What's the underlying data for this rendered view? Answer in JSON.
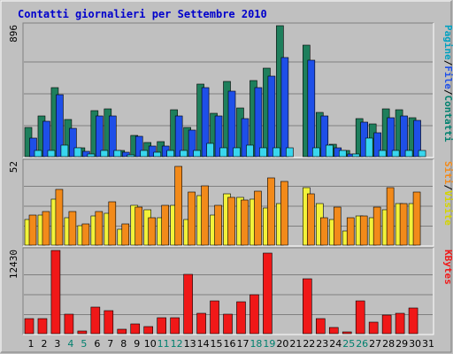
{
  "chart_data": {
    "type": "bar",
    "title": "Contatti giornalieri per Settembre 2010",
    "categories": [
      "1",
      "2",
      "3",
      "4",
      "5",
      "6",
      "7",
      "8",
      "9",
      "10",
      "11",
      "12",
      "13",
      "14",
      "15",
      "16",
      "17",
      "18",
      "19",
      "20",
      "21",
      "22",
      "23",
      "24",
      "25",
      "26",
      "27",
      "28",
      "29",
      "30",
      "31"
    ],
    "weekend_days": [
      "4",
      "5",
      "11",
      "12",
      "18",
      "19",
      "25",
      "26"
    ],
    "grid": true,
    "colors": {
      "background": "#C0C0C0",
      "plot": "#C0C0C0",
      "title": "#0000CC",
      "weekday_label": "#000000",
      "weekend_label": "#00806E",
      "contatti": "#1E7F5C",
      "file": "#1E4FE8",
      "pagine": "#39D6EE",
      "visite": "#F2F23A",
      "siti": "#F28A1A",
      "kbytes": "#F01818"
    },
    "panels": [
      {
        "name": "hits",
        "ymax_label": "896",
        "ylim": [
          0,
          896
        ],
        "legend": [
          {
            "text": "Pagine",
            "color": "#00A0C0"
          },
          {
            "text": "/",
            "color": "#000000"
          },
          {
            "text": "File",
            "color": "#1E4FE8"
          },
          {
            "text": "/",
            "color": "#000000"
          },
          {
            "text": "Contatti",
            "color": "#00806E"
          }
        ],
        "series": [
          {
            "name": "Contatti",
            "color": "#1E7F5C",
            "values": [
              202,
              281,
              472,
              255,
              60,
              317,
              324,
              40,
              145,
              95,
              100,
              320,
              201,
              499,
              295,
              517,
              330,
              519,
              608,
              896,
              0,
              765,
              301,
              86,
              40,
              262,
              225,
              324,
              322,
              269,
              0
            ]
          },
          {
            "name": "File",
            "color": "#1E4FE8",
            "values": [
              130,
              240,
              424,
              195,
              35,
              280,
              280,
              30,
              140,
              75,
              70,
              280,
              180,
              470,
              280,
              450,
              260,
              470,
              550,
              679,
              0,
              660,
              280,
              60,
              20,
              239,
              162,
              269,
              280,
              250,
              0
            ]
          },
          {
            "name": "Pagine",
            "color": "#39D6EE",
            "values": [
              40,
              40,
              80,
              60,
              20,
              40,
              40,
              15,
              40,
              30,
              40,
              40,
              40,
              90,
              60,
              60,
              80,
              60,
              60,
              60,
              0,
              60,
              80,
              40,
              20,
              130,
              40,
              40,
              40,
              40,
              0
            ]
          }
        ]
      },
      {
        "name": "visits",
        "ymax_label": "52",
        "ylim": [
          0,
          52
        ],
        "legend": [
          {
            "text": "Siti",
            "color": "#F28A1A"
          },
          {
            "text": "/",
            "color": "#000000"
          },
          {
            "text": "Visite",
            "color": "#D4D400"
          }
        ],
        "series": [
          {
            "name": "Visite",
            "color": "#F2F23A",
            "values": [
              16,
              19,
              29,
              17,
              12,
              18,
              20,
              10,
              25,
              22,
              17,
              25,
              16,
              31,
              19,
              32,
              30,
              29,
              23,
              26,
              0,
              36,
              26,
              16,
              9,
              18,
              17,
              22,
              26,
              26,
              0
            ]
          },
          {
            "name": "Siti",
            "color": "#F28A1A",
            "values": [
              19,
              21,
              35,
              21,
              13,
              21,
              27,
              13,
              24,
              17,
              25,
              49,
              33,
              37,
              25,
              30,
              28,
              34,
              42,
              40,
              0,
              32,
              17,
              24,
              17,
              18,
              24,
              36,
              26,
              33,
              0
            ]
          }
        ]
      },
      {
        "name": "kbytes",
        "ymax_label": "12430",
        "ylim": [
          0,
          12430
        ],
        "legend": [
          {
            "text": "KBytes",
            "color": "#F01818"
          }
        ],
        "series": [
          {
            "name": "KBytes",
            "color": "#F01818",
            "values": [
              2200,
              2300,
              12430,
              2900,
              400,
              3960,
              3500,
              600,
              1500,
              1100,
              2400,
              2400,
              8900,
              3000,
              4900,
              2900,
              4800,
              5800,
              12000,
              0,
              0,
              8200,
              2200,
              900,
              290,
              4900,
              1700,
              2800,
              3000,
              3800,
              0
            ]
          }
        ]
      }
    ]
  }
}
